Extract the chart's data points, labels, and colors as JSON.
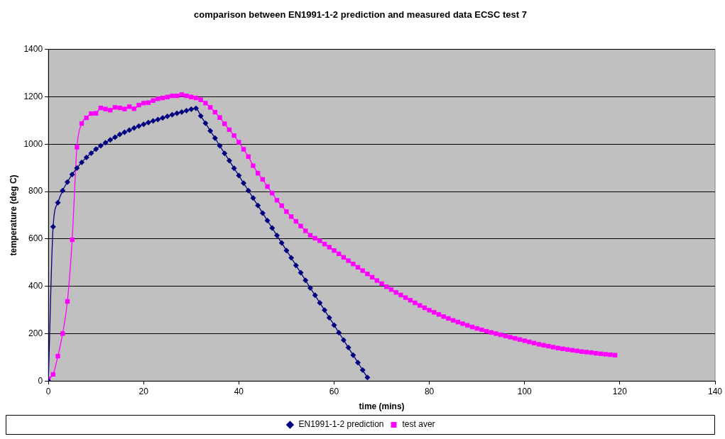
{
  "chart_data": {
    "type": "line",
    "title": "comparison between EN1991-1-2 prediction and measured data ECSC test 7",
    "xlabel": "time (mins)",
    "ylabel": "temperature (deg C)",
    "xlim": [
      0,
      140
    ],
    "xticks": [
      0,
      20,
      40,
      60,
      80,
      100,
      120,
      140
    ],
    "ylim": [
      0,
      1400
    ],
    "yticks": [
      0,
      200,
      400,
      600,
      800,
      1000,
      1200,
      1400
    ],
    "grid": "y",
    "legend": "bottom",
    "line_style": "solid",
    "series": [
      {
        "name": "EN1991-1-2 prediction",
        "color": "#000080",
        "marker": "diamond",
        "x": [
          0,
          1,
          2,
          3,
          4,
          5,
          6,
          7,
          8,
          9,
          10,
          11,
          12,
          13,
          14,
          15,
          16,
          17,
          18,
          19,
          20,
          21,
          22,
          23,
          24,
          25,
          26,
          27,
          28,
          29,
          30,
          31,
          32,
          33,
          34,
          35,
          36,
          37,
          38,
          39,
          40,
          41,
          42,
          43,
          44,
          45,
          46,
          47,
          48,
          49,
          50,
          51,
          52,
          53,
          54,
          55,
          56,
          57,
          58,
          59,
          60,
          61,
          62,
          63,
          64,
          65,
          66,
          67
        ],
        "values": [
          0,
          651,
          753,
          804,
          840,
          872,
          899,
          923,
          944,
          962,
          979,
          993,
          1006,
          1018,
          1029,
          1041,
          1050,
          1059,
          1068,
          1076,
          1084,
          1091,
          1098,
          1104,
          1111,
          1117,
          1124,
          1130,
          1135,
          1141,
          1147,
          1151,
          1119,
          1088,
          1056,
          1025,
          993,
          961,
          930,
          898,
          867,
          835,
          804,
          772,
          741,
          709,
          677,
          646,
          614,
          583,
          551,
          520,
          488,
          457,
          425,
          393,
          362,
          330,
          299,
          267,
          236,
          204,
          173,
          141,
          109,
          78,
          46,
          15
        ]
      },
      {
        "name": "test aver",
        "color": "#ff00ff",
        "marker": "square",
        "x": [
          0,
          1,
          2,
          3,
          4,
          5,
          6,
          7,
          8,
          9,
          10,
          11,
          12,
          13,
          14,
          15,
          16,
          17,
          18,
          19,
          20,
          21,
          22,
          23,
          24,
          25,
          26,
          27,
          28,
          29,
          30,
          31,
          32,
          33,
          34,
          35,
          36,
          37,
          38,
          39,
          40,
          41,
          42,
          43,
          44,
          45,
          46,
          47,
          48,
          49,
          50,
          51,
          52,
          53,
          54,
          55,
          56,
          57,
          58,
          59,
          60,
          61,
          62,
          63,
          64,
          65,
          66,
          67,
          68,
          69,
          70,
          71,
          72,
          73,
          74,
          75,
          76,
          77,
          78,
          79,
          80,
          81,
          82,
          83,
          84,
          85,
          86,
          87,
          88,
          89,
          90,
          91,
          92,
          93,
          94,
          95,
          96,
          97,
          98,
          99,
          100,
          101,
          102,
          103,
          104,
          105,
          106,
          107,
          108,
          109,
          110,
          111,
          112,
          113,
          114,
          115,
          116,
          117,
          118,
          119
        ],
        "values": [
          9,
          28,
          105,
          200,
          336,
          596,
          987,
          1087,
          1111,
          1129,
          1130,
          1153,
          1148,
          1143,
          1155,
          1153,
          1148,
          1158,
          1149,
          1165,
          1173,
          1175,
          1184,
          1191,
          1195,
          1199,
          1204,
          1204,
          1209,
          1204,
          1199,
          1195,
          1187,
          1173,
          1155,
          1135,
          1112,
          1086,
          1061,
          1036,
          1008,
          978,
          947,
          909,
          877,
          851,
          821,
          793,
          763,
          740,
          715,
          694,
          674,
          654,
          634,
          615,
          603,
          592,
          578,
          565,
          551,
          537,
          522,
          508,
          494,
          480,
          466,
          452,
          438,
          424,
          411,
          398,
          386,
          374,
          363,
          352,
          341,
          330,
          319,
          309,
          299,
          290,
          281,
          272,
          264,
          256,
          249,
          242,
          235,
          228,
          222,
          216,
          210,
          205,
          200,
          195,
          190,
          185,
          180,
          175,
          170,
          165,
          160,
          155,
          151,
          147,
          143,
          139,
          136,
          133,
          130,
          127,
          124,
          122,
          120,
          117,
          115,
          113,
          111,
          109
        ]
      }
    ]
  }
}
